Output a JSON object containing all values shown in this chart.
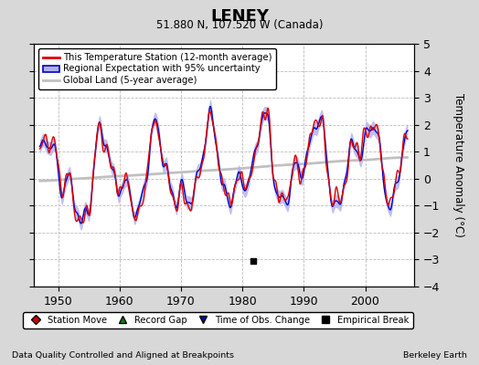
{
  "title": "LENEY",
  "subtitle": "51.880 N, 107.520 W (Canada)",
  "ylabel": "Temperature Anomaly (°C)",
  "xlabel_bottom_left": "Data Quality Controlled and Aligned at Breakpoints",
  "xlabel_bottom_right": "Berkeley Earth",
  "ylim": [
    -4,
    5
  ],
  "yticks": [
    -4,
    -3,
    -2,
    -1,
    0,
    1,
    2,
    3,
    4,
    5
  ],
  "xlim": [
    1946,
    2008
  ],
  "xticks": [
    1950,
    1960,
    1970,
    1980,
    1990,
    2000
  ],
  "bg_color": "#d8d8d8",
  "plot_bg_color": "#ffffff",
  "grid_color": "#bbbbbb",
  "station_color": "#dd0000",
  "regional_color": "#0000cc",
  "regional_fill_color": "#b0b0ee",
  "global_color": "#c0c0c0",
  "legend1_labels": [
    "This Temperature Station (12-month average)",
    "Regional Expectation with 95% uncertainty",
    "Global Land (5-year average)"
  ],
  "legend2_labels": [
    "Station Move",
    "Record Gap",
    "Time of Obs. Change",
    "Empirical Break"
  ],
  "legend2_markers": [
    "D",
    "^",
    "v",
    "s"
  ],
  "legend2_colors": [
    "#cc0000",
    "#008800",
    "#0000cc",
    "#000000"
  ],
  "empirical_break_x": 1981.7,
  "empirical_break_y": -3.05,
  "seed": 123
}
